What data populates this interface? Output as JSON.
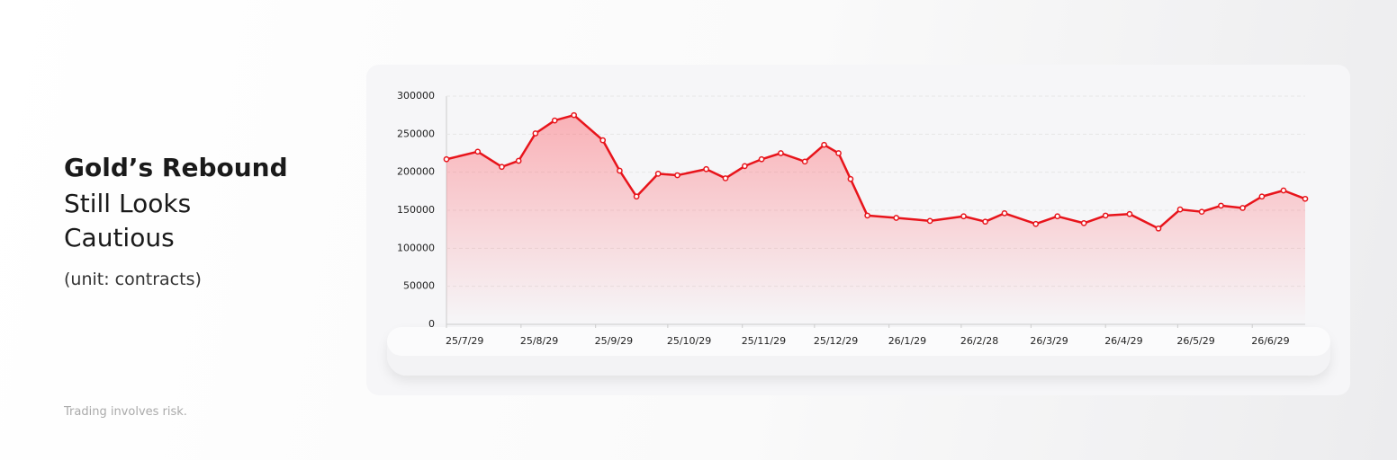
{
  "chart_data": {
    "type": "line",
    "title_lines": [
      "Gold’s Rebound",
      "Still Looks",
      "Cautious"
    ],
    "subtitle": "(unit: contracts)",
    "footnote": "Trading involves risk.",
    "color": "#e8141b",
    "x": [
      "25/7/29",
      "25/8/11",
      "25/8/21",
      "25/8/28",
      "25/9/4",
      "25/9/12",
      "25/9/20",
      "25/10/2",
      "25/10/9",
      "25/10/16",
      "25/10/25",
      "25/11/2",
      "25/11/14",
      "25/11/22",
      "25/11/30",
      "25/12/7",
      "25/12/15",
      "25/12/25",
      "26/1/2",
      "26/1/8",
      "26/1/13",
      "26/1/20",
      "26/2/1",
      "26/2/15",
      "26/3/1",
      "26/3/10",
      "26/3/18",
      "26/3/31",
      "26/4/9",
      "26/4/20",
      "26/4/29",
      "26/5/9",
      "26/5/21",
      "26/5/30",
      "26/6/8",
      "26/6/16",
      "26/6/25",
      "26/7/3",
      "26/7/12",
      "26/7/21"
    ],
    "values": [
      217000,
      227000,
      207000,
      215000,
      251000,
      268000,
      275000,
      242000,
      202000,
      168000,
      198000,
      196000,
      204000,
      192000,
      208000,
      217000,
      225000,
      214000,
      236000,
      225000,
      191000,
      143000,
      140000,
      136000,
      142000,
      135000,
      146000,
      132000,
      142000,
      133000,
      143000,
      145000,
      126000,
      151000,
      148000,
      156000,
      153000,
      168000,
      176000,
      165000
    ],
    "xlim": [
      "25/7/29",
      "26/7/21"
    ],
    "xticks": [
      "25/7/29",
      "25/8/29",
      "25/9/29",
      "25/10/29",
      "25/11/29",
      "25/12/29",
      "26/1/29",
      "26/2/28",
      "26/3/29",
      "26/4/29",
      "26/5/29",
      "26/6/29"
    ],
    "ylim": [
      0,
      300000
    ],
    "yticks": [
      0,
      50000,
      100000,
      150000,
      200000,
      250000,
      300000
    ],
    "grid": true
  }
}
